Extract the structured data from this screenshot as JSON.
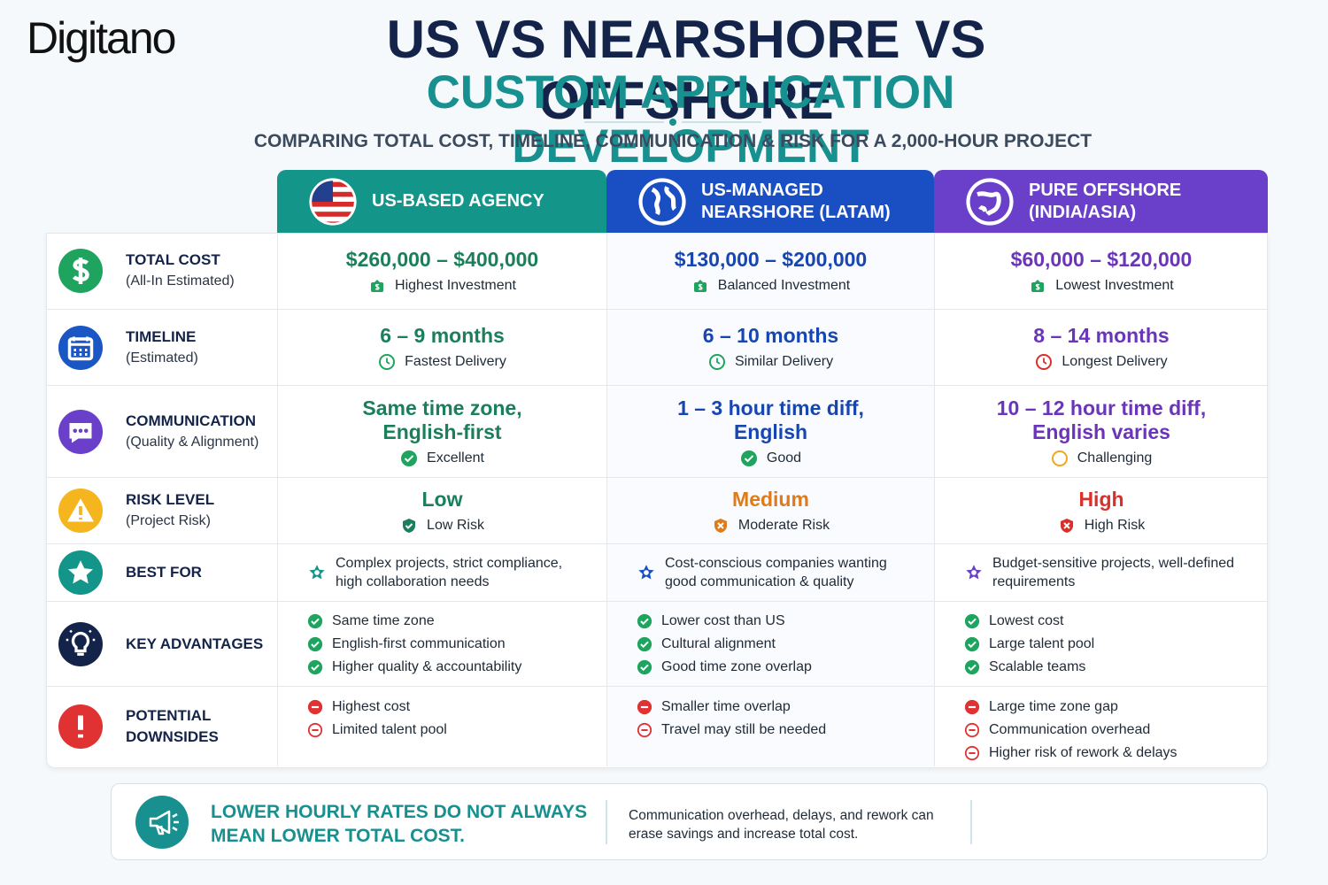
{
  "brand": "Digitano",
  "title": "US VS NEARSHORE VS OFFSHORE",
  "subtitle": "CUSTOM APPLICATION DEVELOPMENT",
  "tagline": "COMPARING TOTAL COST, TIMELINE, COMMUNICATION & RISK FOR A 2,000-HOUR PROJECT",
  "columns": [
    [
      "US-BASED AGENCY"
    ],
    [
      "US-MANAGED",
      "NEARSHORE (LATAM)"
    ],
    [
      "PURE OFFSHORE",
      "(INDIA/ASIA)"
    ]
  ],
  "rows": [
    {
      "label": "TOTAL COST",
      "sublabel": "(All-In Estimated)",
      "cells": [
        {
          "main": [
            "$260,000 – $400,000"
          ],
          "note": "Highest Investment"
        },
        {
          "main": [
            "$130,000 – $200,000"
          ],
          "note": "Balanced Investment"
        },
        {
          "main": [
            "$60,000 – $120,000"
          ],
          "note": "Lowest Investment"
        }
      ]
    },
    {
      "label": "TIMELINE",
      "sublabel": "(Estimated)",
      "cells": [
        {
          "main": [
            "6 – 9 months"
          ],
          "note": "Fastest Delivery"
        },
        {
          "main": [
            "6 – 10 months"
          ],
          "note": "Similar Delivery"
        },
        {
          "main": [
            "8 – 14 months"
          ],
          "note": "Longest Delivery"
        }
      ]
    },
    {
      "label": "COMMUNICATION",
      "sublabel": "(Quality & Alignment)",
      "cells": [
        {
          "main": [
            "Same time zone,",
            "English-first"
          ],
          "note": "Excellent"
        },
        {
          "main": [
            "1 – 3 hour time diff,",
            "English"
          ],
          "note": "Good"
        },
        {
          "main": [
            "10 – 12 hour time diff,",
            "English varies"
          ],
          "note": "Challenging"
        }
      ]
    },
    {
      "label": "RISK LEVEL",
      "sublabel": "(Project Risk)",
      "cells": [
        {
          "main": [
            "Low"
          ],
          "note": "Low Risk"
        },
        {
          "main": [
            "Medium"
          ],
          "note": "Moderate Risk"
        },
        {
          "main": [
            "High"
          ],
          "note": "High Risk"
        }
      ]
    },
    {
      "label": "BEST FOR",
      "cells": [
        {
          "text": "Complex projects, strict compliance, high collaboration needs"
        },
        {
          "text": "Cost-conscious companies wanting good communication & quality"
        },
        {
          "text": "Budget-sensitive projects, well-defined requirements"
        }
      ]
    },
    {
      "label": "KEY ADVANTAGES",
      "cells": [
        {
          "items": [
            "Same time zone",
            "English-first communication",
            "Higher quality & accountability"
          ]
        },
        {
          "items": [
            "Lower cost than US",
            "Cultural alignment",
            "Good time zone overlap"
          ]
        },
        {
          "items": [
            "Lowest cost",
            "Large talent pool",
            "Scalable teams"
          ]
        }
      ]
    },
    {
      "label": "POTENTIAL DOWNSIDES",
      "cells": [
        {
          "items": [
            "Highest cost",
            "Limited talent pool"
          ]
        },
        {
          "items": [
            "Smaller time overlap",
            "Travel may still be needed"
          ]
        },
        {
          "items": [
            "Large time zone gap",
            "Communication overhead",
            "Higher risk of rework & delays"
          ]
        }
      ]
    }
  ],
  "callout": {
    "headline": [
      "LOWER HOURLY RATES DO NOT ALWAYS",
      "MEAN LOWER TOTAL COST."
    ],
    "text": "Communication overhead, delays, and rework can erase savings and increase total cost."
  }
}
